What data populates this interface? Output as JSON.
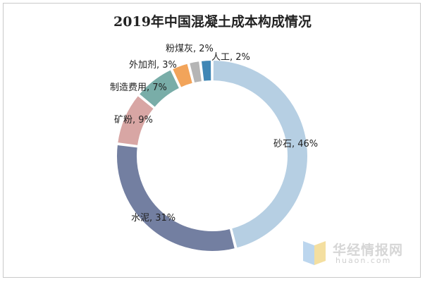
{
  "chart_data": {
    "type": "pie",
    "title": "2019年中国混凝土成本构成情况",
    "donut": true,
    "slices": [
      {
        "name": "砂石",
        "value": 46,
        "label": "砂石, 46%",
        "color": "#b6cfe3"
      },
      {
        "name": "水泥",
        "value": 31,
        "label": "水泥, 31%",
        "color": "#737fa1"
      },
      {
        "name": "矿粉",
        "value": 9,
        "label": "矿粉, 9%",
        "color": "#d8a6a4"
      },
      {
        "name": "制造费用",
        "value": 7,
        "label": "制造费用, 7%",
        "color": "#79ada8"
      },
      {
        "name": "外加剂",
        "value": 3,
        "label": "外加剂, 3%",
        "color": "#f2a45a"
      },
      {
        "name": "粉煤灰",
        "value": 2,
        "label": "粉煤灰, 2%",
        "color": "#b5b5b5"
      },
      {
        "name": "人工",
        "value": 2,
        "label": "人工, 2%",
        "color": "#3f86b5"
      }
    ]
  },
  "watermark": {
    "name": "华经情报网",
    "url": "huaon.com"
  }
}
